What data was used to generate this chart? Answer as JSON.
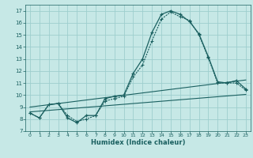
{
  "xlabel": "Humidex (Indice chaleur)",
  "xlim": [
    -0.5,
    23.5
  ],
  "ylim": [
    7,
    17.5
  ],
  "yticks": [
    7,
    8,
    9,
    10,
    11,
    12,
    13,
    14,
    15,
    16,
    17
  ],
  "xticks": [
    0,
    1,
    2,
    3,
    4,
    5,
    6,
    7,
    8,
    9,
    10,
    11,
    12,
    13,
    14,
    15,
    16,
    17,
    18,
    19,
    20,
    21,
    22,
    23
  ],
  "bg_color": "#c6e8e6",
  "grid_color": "#9ecece",
  "line_color": "#1a6060",
  "series1": [
    8.5,
    8.1,
    9.2,
    9.3,
    8.1,
    7.7,
    8.3,
    8.3,
    9.7,
    9.9,
    10.0,
    11.8,
    13.0,
    15.2,
    16.7,
    17.0,
    16.7,
    16.1,
    15.1,
    13.2,
    11.1,
    11.0,
    11.2,
    10.5
  ],
  "series2": [
    8.5,
    8.1,
    9.2,
    9.3,
    8.3,
    7.8,
    8.0,
    8.3,
    9.5,
    9.7,
    9.9,
    11.5,
    12.5,
    14.5,
    16.3,
    16.9,
    16.5,
    16.2,
    15.0,
    13.1,
    11.0,
    11.0,
    11.0,
    10.4
  ],
  "line3_x": [
    0,
    23
  ],
  "line3_y": [
    8.6,
    10.05
  ],
  "line4_x": [
    0,
    23
  ],
  "line4_y": [
    9.0,
    11.25
  ]
}
